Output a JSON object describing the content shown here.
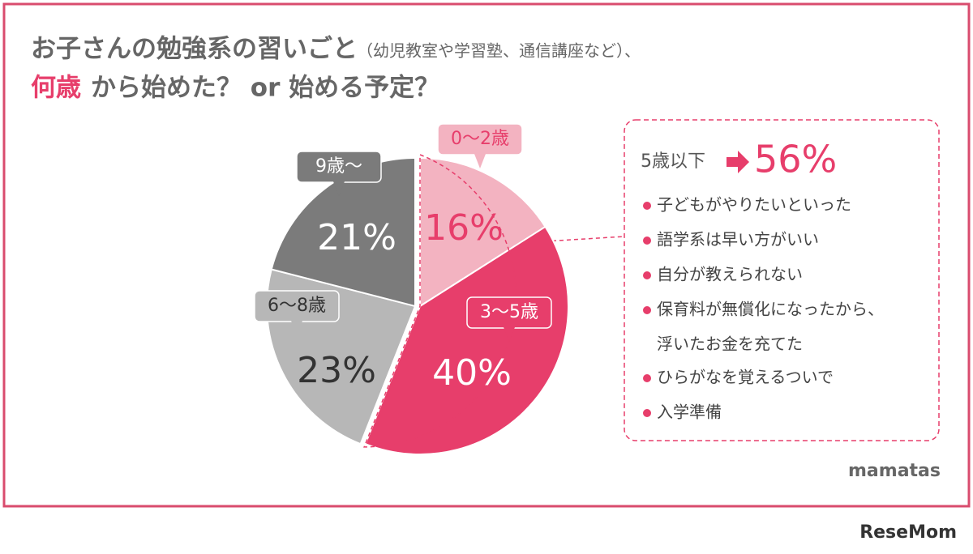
{
  "chart_data": {
    "type": "pie",
    "title": {
      "main": "お子さんの勉強系の習いごと",
      "note": "（幼児教室や学習塾、通信講座など）、",
      "highlight": "何歳",
      "rest": "から始めた？ or 始める予定？"
    },
    "categories": [
      "0～2歳",
      "3～5歳",
      "6～8歳",
      "9歳～"
    ],
    "values": [
      16,
      40,
      23,
      21
    ],
    "value_labels": [
      "16%",
      "40%",
      "23%",
      "21%"
    ],
    "colors": [
      "#f3b3c1",
      "#e73e6b",
      "#b7b7b7",
      "#7b7b7b"
    ]
  },
  "callout": {
    "label": "5歳以下",
    "value": "56%",
    "items": [
      "子どもがやりたいといった",
      "語学系は早い方がいい",
      "自分が教えられない",
      "保育料が無償化になったから、",
      "浮いたお金を充てた",
      "ひらがなを覚えるついで",
      "入学準備"
    ]
  },
  "brand": "mamatas",
  "source": "ReseMom"
}
